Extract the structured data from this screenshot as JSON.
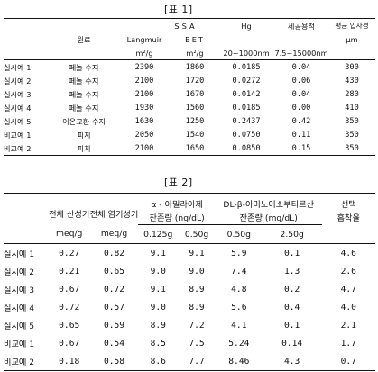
{
  "table1": {
    "caption": "[표 1]",
    "group_headers": {
      "ssa": "SSA",
      "hg": "Hg",
      "pore_volume": "세공용적",
      "avg_particle": "평균 입자경"
    },
    "col_headers": {
      "material": "원료",
      "langmuir": "Langmuir",
      "bet": "BET",
      "ssa_unit_1": "m²/g",
      "ssa_unit_2": "m²/g",
      "hg_range": "20~1000nm",
      "pore_range": "7.5~15000nm",
      "particle_unit": "μm"
    },
    "rows": [
      {
        "label": "실시예 1",
        "material": "페놀 수지",
        "langmuir": "2390",
        "bet": "1860",
        "hg": "0.0185",
        "pore": "0.04",
        "particle": "300"
      },
      {
        "label": "실시예 2",
        "material": "페놀 수지",
        "langmuir": "2100",
        "bet": "1720",
        "hg": "0.0272",
        "pore": "0.06",
        "particle": "430"
      },
      {
        "label": "실시예 3",
        "material": "페놀 수지",
        "langmuir": "2100",
        "bet": "1670",
        "hg": "0.0142",
        "pore": "0.04",
        "particle": "280"
      },
      {
        "label": "실시예 4",
        "material": "페놀 수지",
        "langmuir": "1930",
        "bet": "1560",
        "hg": "0.0185",
        "pore": "0.00",
        "particle": "410"
      },
      {
        "label": "실시예 5",
        "material": "이온교환 수지",
        "langmuir": "1630",
        "bet": "1250",
        "hg": "0.2437",
        "pore": "0.42",
        "particle": "350"
      },
      {
        "label": "비교예 1",
        "material": "피치",
        "langmuir": "2050",
        "bet": "1540",
        "hg": "0.0750",
        "pore": "0.11",
        "particle": "350"
      },
      {
        "label": "비교예 2",
        "material": "피치",
        "langmuir": "2100",
        "bet": "1650",
        "hg": "0.0850",
        "pore": "0.15",
        "particle": "350"
      }
    ]
  },
  "table2": {
    "caption": "[표 2]",
    "headers": {
      "total_acidity": "전체 산성기",
      "total_basicity": "전체 염기성기",
      "alpha": "α - 아밀라아제",
      "alpha_sub": "잔존량 (ng/dL)",
      "dl": "DL-β-아미노이소부티르산",
      "dl_sub": "잔존량    (mg/dL)",
      "selective": "선택",
      "adsorption": "흡착율",
      "meq1": "meq/g",
      "meq2": "meq/g",
      "a1": "0.125g",
      "a2": "0.50g",
      "d1": "0.50g",
      "d2": "2.50g"
    },
    "rows": [
      {
        "label": "실시예 1",
        "acid": "0.27",
        "base": "0.82",
        "a1": "9.1",
        "a2": "9.1",
        "d1": "5.9",
        "d2": "0.1",
        "sel": "4.6"
      },
      {
        "label": "실시예 2",
        "acid": "0.21",
        "base": "0.65",
        "a1": "9.0",
        "a2": "9.0",
        "d1": "7.4",
        "d2": "1.3",
        "sel": "2.6"
      },
      {
        "label": "실시예 3",
        "acid": "0.67",
        "base": "0.72",
        "a1": "9.1",
        "a2": "8.9",
        "d1": "4.8",
        "d2": "0.2",
        "sel": "4.7"
      },
      {
        "label": "실시예 4",
        "acid": "0.72",
        "base": "0.57",
        "a1": "9.0",
        "a2": "8.9",
        "d1": "5.6",
        "d2": "0.4",
        "sel": "4.0"
      },
      {
        "label": "실시예 5",
        "acid": "0.65",
        "base": "0.59",
        "a1": "8.9",
        "a2": "7.2",
        "d1": "4.1",
        "d2": "0.1",
        "sel": "2.1"
      },
      {
        "label": "비교예 1",
        "acid": "0.67",
        "base": "0.54",
        "a1": "8.5",
        "a2": "7.5",
        "d1": "5.24",
        "d2": "0.14",
        "sel": "1.7"
      },
      {
        "label": "비교예 2",
        "acid": "0.18",
        "base": "0.58",
        "a1": "8.6",
        "a2": "7.7",
        "d1": "8.46",
        "d2": "4.3",
        "sel": "0.7"
      }
    ]
  }
}
